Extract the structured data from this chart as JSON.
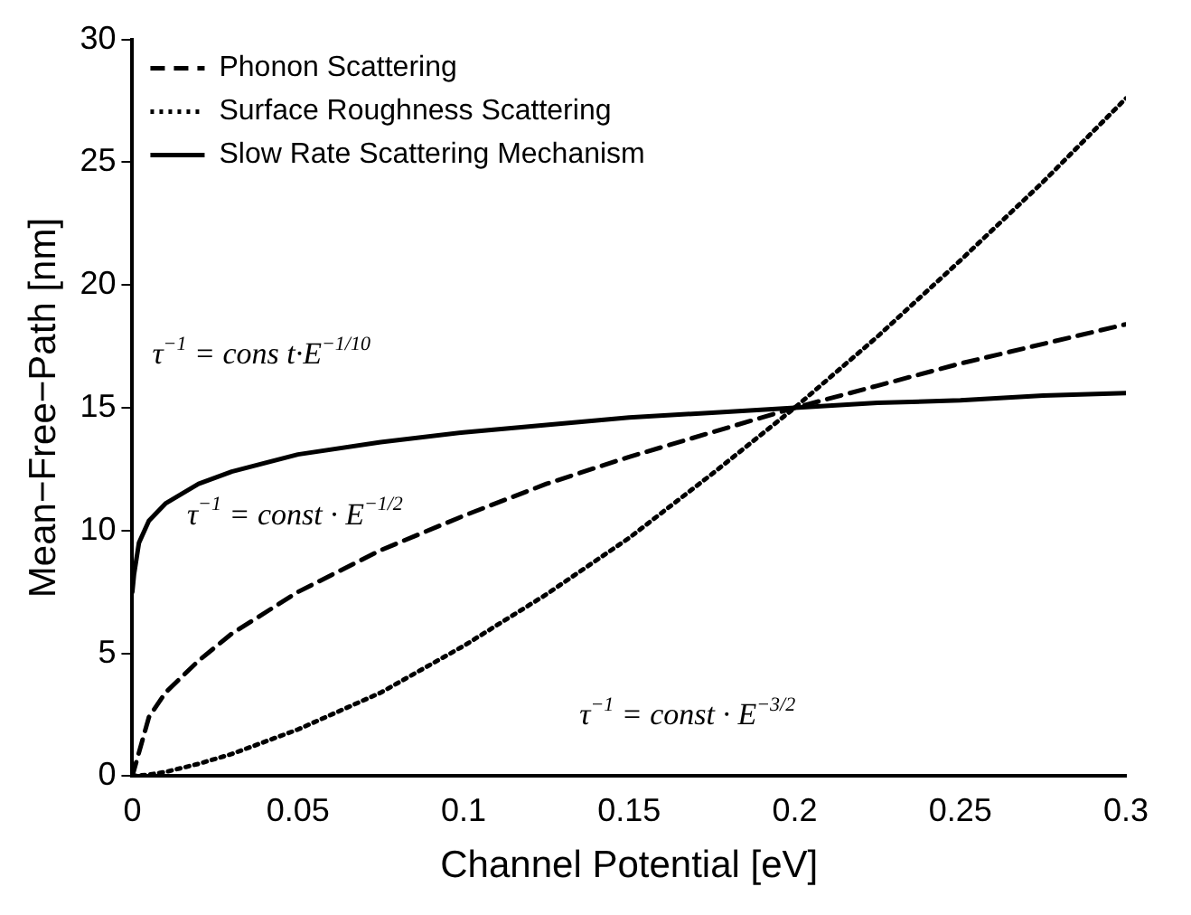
{
  "chart_data": {
    "type": "line",
    "xlabel": "Channel Potential [eV]",
    "ylabel": "Mean−Free−Path [nm]",
    "x": [
      0,
      0.005,
      0.01,
      0.02,
      0.03,
      0.05,
      0.075,
      0.1,
      0.125,
      0.15,
      0.175,
      0.2,
      0.225,
      0.25,
      0.275,
      0.3
    ],
    "series": [
      {
        "name": "Phonon Scattering",
        "color": "#000000",
        "line_style": "dashed",
        "values": [
          0,
          2.4,
          3.4,
          4.7,
          5.8,
          7.5,
          9.2,
          10.6,
          11.9,
          13.0,
          14.0,
          15,
          15.9,
          16.8,
          17.6,
          18.4
        ]
      },
      {
        "name": "Surface Roughness Scattering",
        "color": "#000000",
        "line_style": "dotted",
        "values": [
          0,
          0.06,
          0.17,
          0.5,
          0.9,
          1.9,
          3.4,
          5.3,
          7.4,
          9.7,
          12.3,
          15,
          17.9,
          21.0,
          24.2,
          27.6
        ]
      },
      {
        "name": "Slow Rate Scattering Mechanism",
        "color": "#000000",
        "line_style": "solid",
        "x": [
          0,
          0.0005,
          0.002,
          0.005,
          0.01,
          0.02,
          0.03,
          0.05,
          0.075,
          0.1,
          0.125,
          0.15,
          0.175,
          0.2,
          0.225,
          0.25,
          0.275,
          0.3
        ],
        "values": [
          7.5,
          8.2,
          9.5,
          10.4,
          11.1,
          11.9,
          12.4,
          13.1,
          13.6,
          14.0,
          14.3,
          14.6,
          14.8,
          15,
          15.2,
          15.3,
          15.5,
          15.6
        ]
      }
    ],
    "xlim": [
      0,
      0.3
    ],
    "xticks": [
      0,
      0.05,
      0.1,
      0.15,
      0.2,
      0.25,
      0.3
    ],
    "ylim": [
      0,
      30
    ],
    "yticks": [
      0,
      5,
      10,
      15,
      20,
      25,
      30
    ],
    "grid": false,
    "legend": "top left",
    "marker": "none",
    "annotations": [
      "τ$^{−1}$ = cons t·E$^{−1/10}$",
      "τ$^{−1}$ = const · E$^{−1/2}$",
      "τ$^{−1}$ = const · E$^{−3/2}$"
    ]
  }
}
